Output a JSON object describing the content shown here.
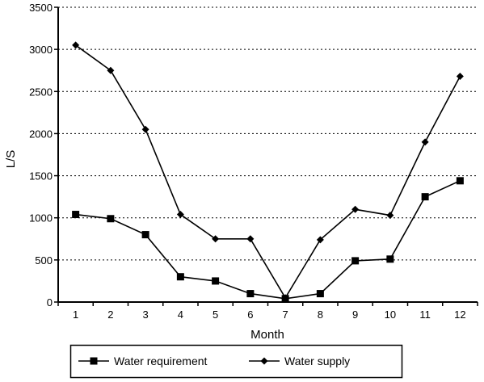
{
  "chart_data": {
    "type": "line",
    "title": "",
    "xlabel": "Month",
    "ylabel": "L/S",
    "x": [
      1,
      2,
      3,
      4,
      5,
      6,
      7,
      8,
      9,
      10,
      11,
      12
    ],
    "x_tick_labels": [
      "1",
      "2",
      "3",
      "4",
      "5",
      "6",
      "7",
      "8",
      "9",
      "10",
      "11",
      "12"
    ],
    "ylim": [
      0,
      3500
    ],
    "y_ticks": [
      0,
      500,
      1000,
      1500,
      2000,
      2500,
      3000,
      3500
    ],
    "y_tick_labels": [
      "0",
      "500",
      "1000",
      "1500",
      "2000",
      "2500",
      "3000",
      "3500"
    ],
    "grid": "horizontal dotted",
    "legend_position": "bottom",
    "series": [
      {
        "name": "Water requirement",
        "marker": "square",
        "color": "#000000",
        "values": [
          1040,
          990,
          800,
          300,
          250,
          100,
          40,
          100,
          490,
          510,
          1250,
          1440
        ]
      },
      {
        "name": "Water supply",
        "marker": "diamond",
        "color": "#000000",
        "values": [
          3050,
          2750,
          2050,
          1040,
          750,
          750,
          50,
          740,
          1100,
          1030,
          1900,
          2680
        ]
      }
    ]
  }
}
